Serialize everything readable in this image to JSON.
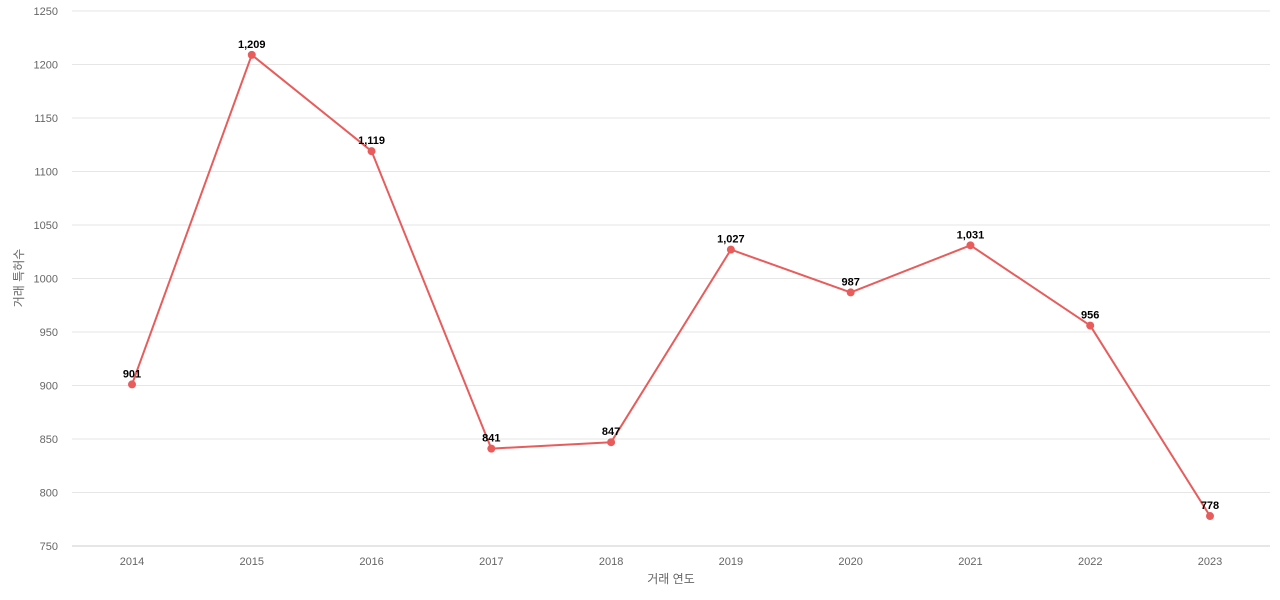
{
  "chart_data": {
    "type": "line",
    "x": [
      "2014",
      "2015",
      "2016",
      "2017",
      "2018",
      "2019",
      "2020",
      "2021",
      "2022",
      "2023"
    ],
    "series": [
      {
        "values": [
          901,
          1209,
          1119,
          841,
          847,
          1027,
          987,
          1031,
          956,
          778
        ],
        "labels": [
          "901",
          "1,209",
          "1,119",
          "841",
          "847",
          "1,027",
          "987",
          "1,031",
          "956",
          "778"
        ],
        "color": "#e85c5c"
      }
    ],
    "title": "",
    "xlabel": "거래 연도",
    "ylabel": "거래 특허수",
    "ylim": [
      750,
      1250
    ],
    "yticks": [
      750,
      800,
      850,
      900,
      950,
      1000,
      1050,
      1100,
      1150,
      1200,
      1250
    ],
    "grid": true,
    "legend": "none"
  }
}
